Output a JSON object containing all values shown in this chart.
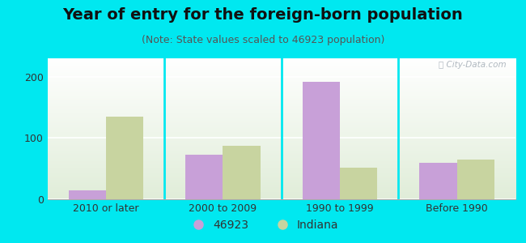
{
  "title": "Year of entry for the foreign-born population",
  "subtitle": "(Note: State values scaled to 46923 population)",
  "categories": [
    "2010 or later",
    "2000 to 2009",
    "1990 to 1999",
    "Before 1990"
  ],
  "values_46923": [
    15,
    73,
    192,
    60
  ],
  "values_indiana": [
    135,
    87,
    52,
    65
  ],
  "color_46923": "#c8a0d8",
  "color_indiana": "#c8d4a0",
  "background_outer": "#00e8f0",
  "ylim": [
    0,
    230
  ],
  "yticks": [
    0,
    100,
    200
  ],
  "bar_width": 0.32,
  "legend_label_46923": "46923",
  "legend_label_indiana": "Indiana",
  "title_fontsize": 14,
  "subtitle_fontsize": 9,
  "tick_fontsize": 9,
  "legend_fontsize": 10
}
